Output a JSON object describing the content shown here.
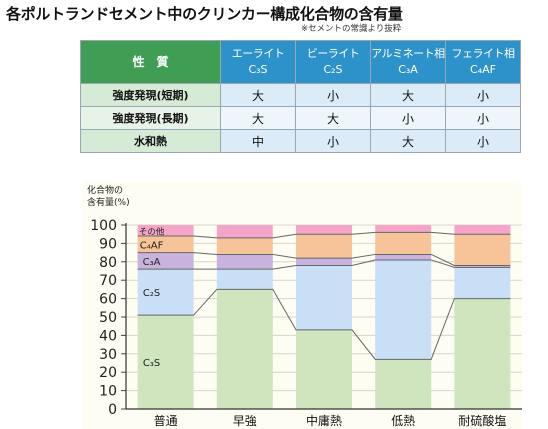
{
  "title": "各ポルトランドセメント中のクリンカー構成化合物の含有量",
  "note": "※セメントの常識より抜粋",
  "table": {
    "corner": "性　質",
    "phases": [
      {
        "name": "エーライト",
        "formula": "C₃S"
      },
      {
        "name": "ビーライト",
        "formula": "C₂S"
      },
      {
        "name": "アルミネート相",
        "formula": "C₃A"
      },
      {
        "name": "フェライト相",
        "formula": "C₄AF"
      }
    ],
    "rows": [
      {
        "property": "強度発現(短期)",
        "values": [
          "大",
          "小",
          "大",
          "小"
        ]
      },
      {
        "property": "強度発現(長期)",
        "values": [
          "大",
          "大",
          "小",
          "小"
        ]
      },
      {
        "property": "水和熱",
        "values": [
          "中",
          "小",
          "大",
          "小"
        ]
      }
    ]
  },
  "chart_data": {
    "type": "bar",
    "stacked": true,
    "ylabel": "化合物の\n含有量(%)",
    "ylim": [
      0,
      100
    ],
    "yticks": [
      0,
      10,
      20,
      30,
      40,
      50,
      60,
      70,
      80,
      90,
      100
    ],
    "categories": [
      "普通",
      "早強",
      "中庸熱",
      "低熱",
      "耐硫酸塩"
    ],
    "series": [
      {
        "name": "C₃S",
        "values": [
          51,
          65,
          43,
          27,
          60
        ],
        "color": "#cfe5bd"
      },
      {
        "name": "C₂S",
        "values": [
          25,
          11,
          35,
          54,
          17
        ],
        "color": "#c9dff6"
      },
      {
        "name": "C₃A",
        "values": [
          9,
          8,
          4,
          3,
          1
        ],
        "color": "#c8b3de"
      },
      {
        "name": "C₄AF",
        "values": [
          9,
          9,
          13,
          12,
          17
        ],
        "color": "#f7c49a"
      },
      {
        "name": "その他",
        "values": [
          6,
          7,
          5,
          4,
          5
        ],
        "color": "#f5a6c8"
      }
    ],
    "grid": true,
    "line_color": "#666666"
  }
}
